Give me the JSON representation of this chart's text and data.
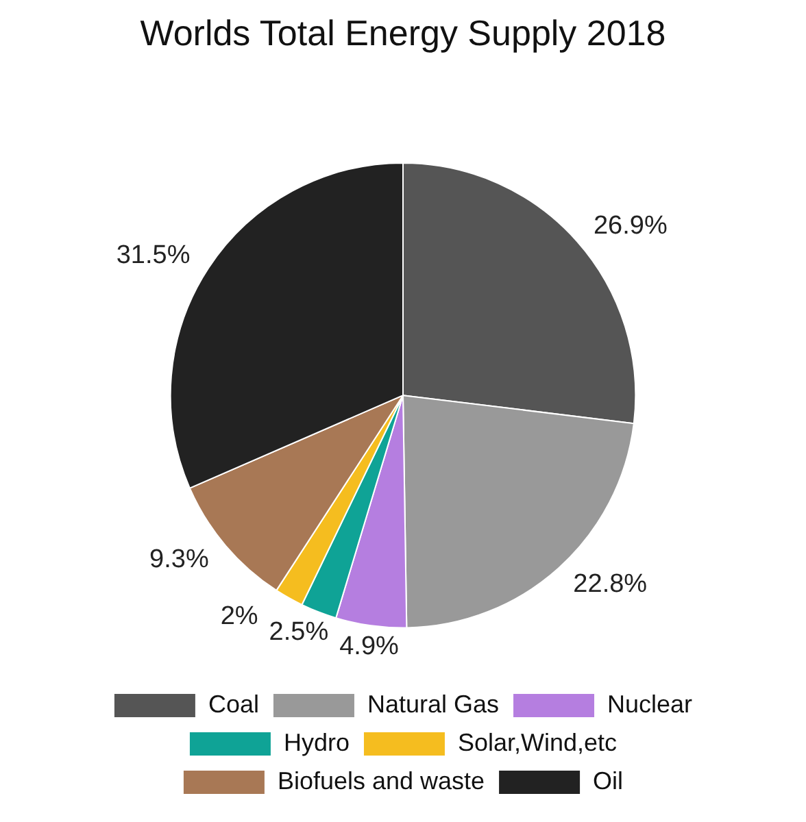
{
  "chart_data": {
    "type": "pie",
    "title": "Worlds Total Energy Supply 2018",
    "categories": [
      "Coal",
      "Natural Gas",
      "Nuclear",
      "Hydro",
      "Solar,Wind,etc",
      "Biofuels and waste",
      "Oil"
    ],
    "values": [
      26.9,
      22.8,
      4.9,
      2.5,
      2,
      9.3,
      31.5
    ],
    "value_labels": [
      "26.9%",
      "22.8%",
      "4.9%",
      "2.5%",
      "2%",
      "9.3%",
      "31.5%"
    ],
    "colors": [
      "#555555",
      "#999999",
      "#b57ee0",
      "#0fa396",
      "#f5bd1f",
      "#a87855",
      "#222222"
    ],
    "legend": "bottom"
  }
}
